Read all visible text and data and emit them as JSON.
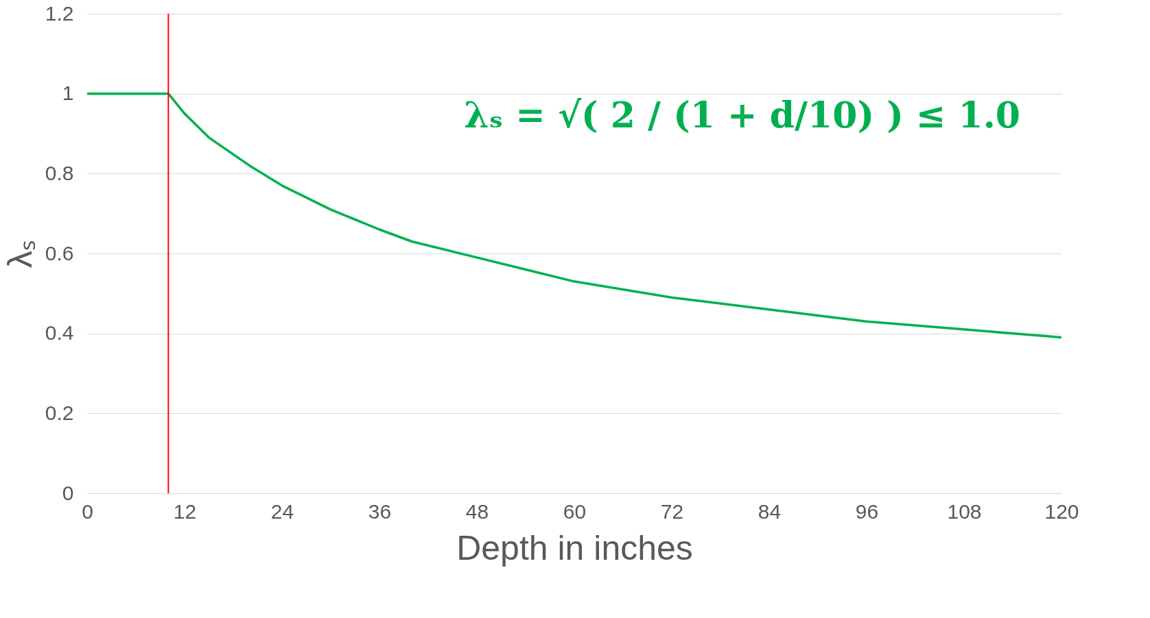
{
  "chart_data": {
    "type": "line",
    "xlabel": "Depth in inches",
    "ylabel": "λₛ",
    "x": [
      0,
      10,
      12,
      15,
      20,
      24,
      30,
      36,
      40,
      48,
      60,
      72,
      84,
      96,
      108,
      120
    ],
    "series": [
      {
        "color": "#00b050",
        "values": [
          1,
          1,
          0.95,
          0.89,
          0.82,
          0.77,
          0.71,
          0.66,
          0.63,
          0.59,
          0.53,
          0.49,
          0.46,
          0.43,
          0.41,
          0.39
        ]
      }
    ],
    "xlim": [
      0,
      120
    ],
    "xticks": [
      0,
      12,
      24,
      36,
      48,
      60,
      72,
      84,
      96,
      108,
      120
    ],
    "ylim": [
      0,
      1.2
    ],
    "yticks": [
      0,
      0.2,
      0.4,
      0.6,
      0.8,
      1,
      1.2
    ],
    "ref_lines": [
      {
        "axis": "x",
        "value": 10,
        "color": "#ff0000"
      }
    ],
    "annotations": [
      "λₛ = √( 2 / (1 + d/10) ) ≤ 1.0"
    ],
    "grid": "y",
    "marker": "none",
    "line_style": "solid"
  }
}
